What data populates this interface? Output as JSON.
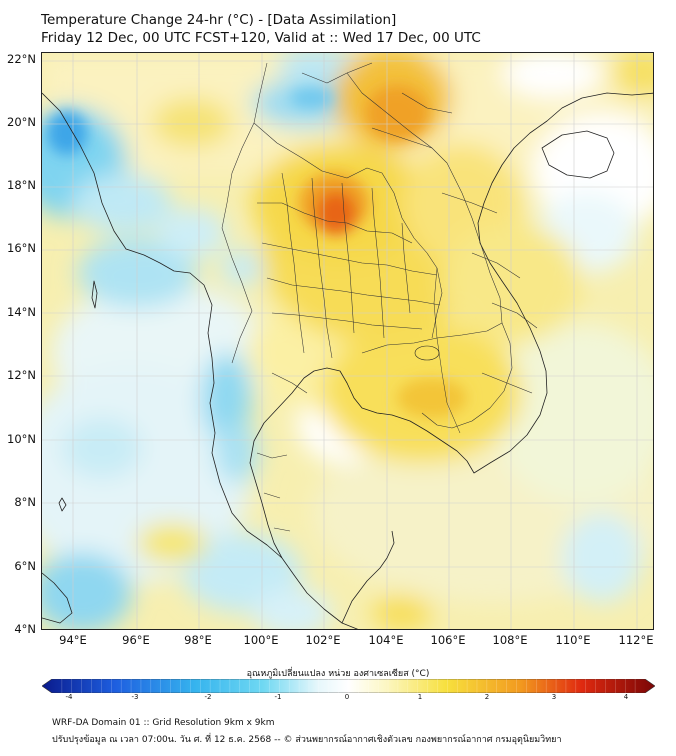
{
  "header": {
    "title_line1": "Temperature Change 24-hr (°C) - [Data Assimilation]",
    "title_line2": "Friday 12 Dec, 00 UTC FCST+120, Valid at :: Wed 17 Dec, 00 UTC"
  },
  "map": {
    "lat_labels": [
      "22°N",
      "20°N",
      "18°N",
      "16°N",
      "14°N",
      "12°N",
      "10°N",
      "8°N",
      "6°N",
      "4°N"
    ],
    "lon_labels": [
      "94°E",
      "96°E",
      "98°E",
      "100°E",
      "102°E",
      "104°E",
      "106°E",
      "108°E",
      "110°E",
      "112°E"
    ],
    "variable": "24-hr temperature change",
    "units": "°C"
  },
  "colorbar": {
    "title": "อุณหภูมิเปลี่ยนแปลง หน่วย องศาเซลเซียส (°C)",
    "tick_labels": [
      "-4",
      "-3",
      "-2",
      "-1",
      "0",
      "1",
      "2",
      "3",
      "4"
    ],
    "colors": {
      "deep_blue": "#0a1a8c",
      "blue": "#1e5fe0",
      "sky": "#36b4ee",
      "cyan": "#6fd8f2",
      "pale": "#e6f7fb",
      "white": "#ffffff",
      "pale_yellow": "#fcf7c4",
      "yellow": "#f7e03d",
      "orange": "#f29a1f",
      "red": "#e02a10",
      "dark_red": "#7a0606"
    }
  },
  "footer": {
    "line1": "WRF-DA Domain 01 :: Grid Resolution 9km x 9km",
    "line2": "ปรับปรุงข้อมูล ณ เวลา 07:00น. วัน ศ. ที่ 12 ธ.ค. 2568 -- © ส่วนพยากรณ์อากาศเชิงตัวเลข กองพยากรณ์อากาศ กรมอุตุนิยมวิทยา"
  }
}
